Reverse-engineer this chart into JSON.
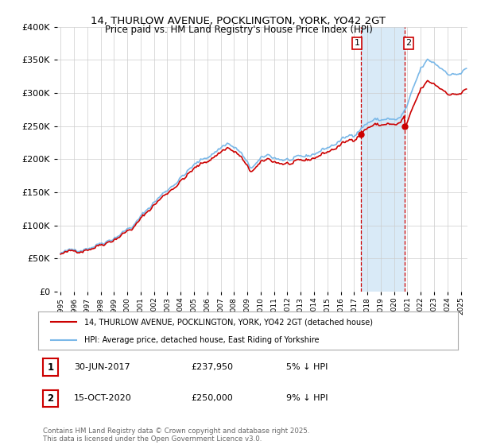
{
  "title": "14, THURLOW AVENUE, POCKLINGTON, YORK, YO42 2GT",
  "subtitle": "Price paid vs. HM Land Registry's House Price Index (HPI)",
  "legend_line1": "14, THURLOW AVENUE, POCKLINGTON, YORK, YO42 2GT (detached house)",
  "legend_line2": "HPI: Average price, detached house, East Riding of Yorkshire",
  "annotation1_label": "1",
  "annotation1_date": "30-JUN-2017",
  "annotation1_price": "£237,950",
  "annotation1_hpi": "5% ↓ HPI",
  "annotation2_label": "2",
  "annotation2_date": "15-OCT-2020",
  "annotation2_price": "£250,000",
  "annotation2_hpi": "9% ↓ HPI",
  "footer": "Contains HM Land Registry data © Crown copyright and database right 2025.\nThis data is licensed under the Open Government Licence v3.0.",
  "hpi_color": "#7ab8e8",
  "hpi_fill_color": "#d9eaf7",
  "price_color": "#cc0000",
  "annotation_color": "#cc0000",
  "vline_color": "#cc0000",
  "ylim": [
    0,
    400000
  ],
  "yticks": [
    0,
    50000,
    100000,
    150000,
    200000,
    250000,
    300000,
    350000,
    400000
  ],
  "sale1_year": 2017,
  "sale1_month": 6,
  "sale1_day": 30,
  "sale1_price": 237950,
  "sale2_year": 2020,
  "sale2_month": 10,
  "sale2_day": 15,
  "sale2_price": 250000
}
